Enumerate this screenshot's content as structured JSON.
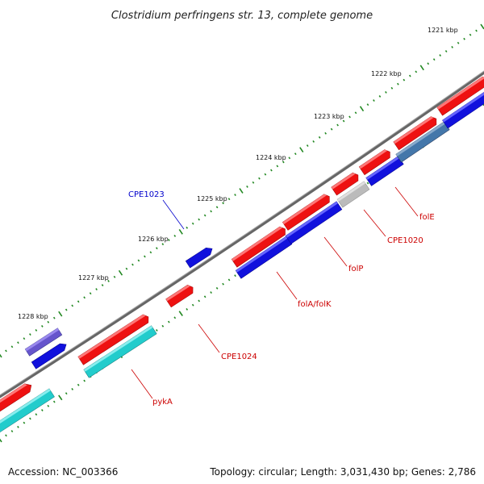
{
  "title": "Clostridium perfringens str. 13, complete genome",
  "accession": "Accession: NC_003366",
  "summary": "Topology: circular; Length: 3,031,430 bp; Genes: 2,786",
  "ticks": [
    "1221 kbp",
    "1222 kbp",
    "1223 kbp",
    "1224 kbp",
    "1225 kbp",
    "1226 kbp",
    "1227 kbp",
    "1228 kbp"
  ],
  "genes": [
    {
      "label": "CPE1023",
      "color": "#0000cc"
    },
    {
      "label": "folE",
      "color": "#cc0000"
    },
    {
      "label": "CPE1020",
      "color": "#cc0000"
    },
    {
      "label": "folP",
      "color": "#cc0000"
    },
    {
      "label": "folA/folK",
      "color": "#cc0000"
    },
    {
      "label": "CPE1024",
      "color": "#cc0000"
    },
    {
      "label": "pykA",
      "color": "#cc0000"
    }
  ],
  "colors": {
    "red": "#ee1111",
    "blue": "#1111dd",
    "cyan": "#22cccc",
    "purple": "#6655cc",
    "steel": "#4477aa",
    "gray": "#bbbbbb",
    "backbone": "#777777",
    "tick": "#228822"
  }
}
